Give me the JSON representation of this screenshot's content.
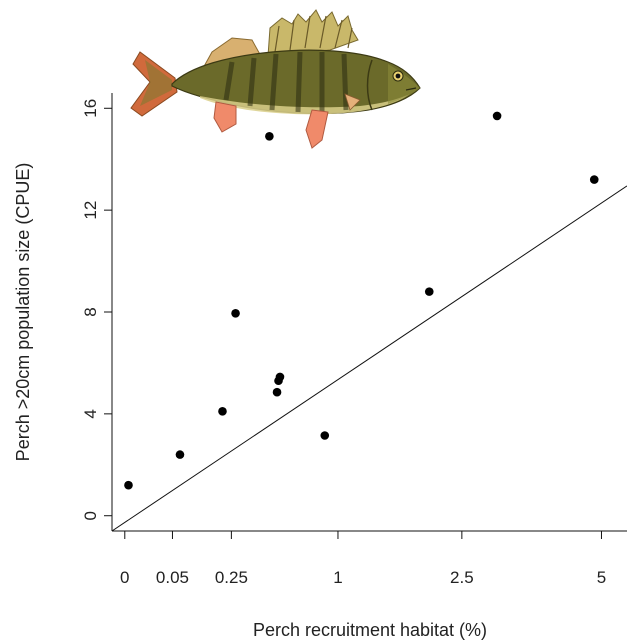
{
  "chart_data": {
    "type": "scatter",
    "xlabel": "Perch recruitment habitat (%)",
    "ylabel": "Perch >20cm population size (CPUE)",
    "x_scale": "sqrt",
    "x_ticks": [
      0,
      0.05,
      0.25,
      1,
      2.5,
      5
    ],
    "x_tick_labels": [
      "0",
      "0.05",
      "0.25",
      "1",
      "2.5",
      "5"
    ],
    "y_ticks": [
      0,
      4,
      8,
      12,
      16
    ],
    "y_tick_labels": [
      "0",
      "4",
      "8",
      "12",
      "16"
    ],
    "xlim": [
      -0.0036,
      5.55
    ],
    "ylim": [
      -0.6,
      16.6
    ],
    "grid": false,
    "series": [
      {
        "points": [
          {
            "x": 0.0003,
            "y": 1.2
          },
          {
            "x": 0.067,
            "y": 2.4
          },
          {
            "x": 0.21,
            "y": 4.1
          },
          {
            "x": 0.27,
            "y": 7.95
          },
          {
            "x": 0.46,
            "y": 14.9
          },
          {
            "x": 0.51,
            "y": 4.85
          },
          {
            "x": 0.52,
            "y": 5.3
          },
          {
            "x": 0.53,
            "y": 5.45
          },
          {
            "x": 0.88,
            "y": 3.15
          },
          {
            "x": 2.04,
            "y": 8.8
          },
          {
            "x": 3.05,
            "y": 15.7
          },
          {
            "x": 4.85,
            "y": 13.2
          }
        ]
      }
    ],
    "fit_line": {
      "x": [
        -0.0036,
        5.55
      ],
      "y": [
        -0.6,
        12.95
      ]
    },
    "colors": {
      "points": "#000000",
      "line": "#111111",
      "text": "#222222"
    }
  },
  "illustration": {
    "icon": "perch-fish-illustration",
    "body_color": "#6b6a2a",
    "fin_color": "#e07a55"
  }
}
